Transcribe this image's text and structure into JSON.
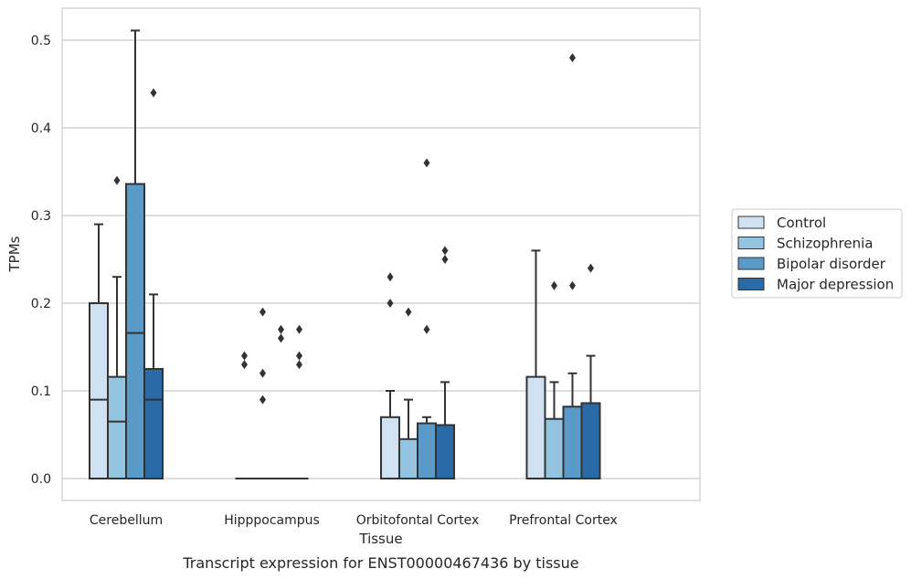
{
  "caption": "Transcript expression for ENST00000467436 by tissue",
  "chart_data": {
    "type": "box",
    "xlabel": "Tissue",
    "ylabel": "TPMs",
    "ylim": [
      -0.025,
      0.537
    ],
    "yticks": [
      "0.0",
      "0.1",
      "0.2",
      "0.3",
      "0.4",
      "0.5"
    ],
    "grid": "horizontal",
    "legend_position": "right",
    "categories": [
      "Cerebellum",
      "Hipppocampus",
      "Orbitofontal Cortex",
      "Prefrontal Cortex"
    ],
    "series": [
      {
        "name": "Control",
        "color": "#d0e1f2",
        "boxes": [
          {
            "q1": 0.0,
            "median": 0.09,
            "q3": 0.2,
            "whisker_low": 0.0,
            "whisker_high": 0.29,
            "outliers": []
          },
          {
            "q1": 0.0,
            "median": 0.0,
            "q3": 0.0,
            "whisker_low": 0.0,
            "whisker_high": 0.0,
            "outliers": [
              0.13,
              0.14
            ]
          },
          {
            "q1": 0.0,
            "median": 0.0,
            "q3": 0.07,
            "whisker_low": 0.0,
            "whisker_high": 0.1,
            "outliers": [
              0.2,
              0.23
            ]
          },
          {
            "q1": 0.0,
            "median": 0.0,
            "q3": 0.116,
            "whisker_low": 0.0,
            "whisker_high": 0.26,
            "outliers": []
          }
        ]
      },
      {
        "name": "Schizophrenia",
        "color": "#94c4df",
        "boxes": [
          {
            "q1": 0.0,
            "median": 0.065,
            "q3": 0.116,
            "whisker_low": 0.0,
            "whisker_high": 0.23,
            "outliers": [
              0.34
            ]
          },
          {
            "q1": 0.0,
            "median": 0.0,
            "q3": 0.0,
            "whisker_low": 0.0,
            "whisker_high": 0.0,
            "outliers": [
              0.09,
              0.12,
              0.19
            ]
          },
          {
            "q1": 0.0,
            "median": 0.0,
            "q3": 0.045,
            "whisker_low": 0.0,
            "whisker_high": 0.09,
            "outliers": [
              0.19
            ]
          },
          {
            "q1": 0.0,
            "median": 0.0,
            "q3": 0.068,
            "whisker_low": 0.0,
            "whisker_high": 0.11,
            "outliers": [
              0.22
            ]
          }
        ]
      },
      {
        "name": "Bipolar disorder",
        "color": "#5a9ac9",
        "boxes": [
          {
            "q1": 0.0,
            "median": 0.166,
            "q3": 0.336,
            "whisker_low": 0.0,
            "whisker_high": 0.511,
            "outliers": []
          },
          {
            "q1": 0.0,
            "median": 0.0,
            "q3": 0.0,
            "whisker_low": 0.0,
            "whisker_high": 0.0,
            "outliers": [
              0.16,
              0.17
            ]
          },
          {
            "q1": 0.0,
            "median": 0.0,
            "q3": 0.063,
            "whisker_low": 0.0,
            "whisker_high": 0.07,
            "outliers": [
              0.17,
              0.36
            ]
          },
          {
            "q1": 0.0,
            "median": 0.0,
            "q3": 0.082,
            "whisker_low": 0.0,
            "whisker_high": 0.12,
            "outliers": [
              0.22,
              0.48
            ]
          }
        ]
      },
      {
        "name": "Major depression",
        "color": "#2a6ba7",
        "boxes": [
          {
            "q1": 0.0,
            "median": 0.09,
            "q3": 0.125,
            "whisker_low": 0.0,
            "whisker_high": 0.21,
            "outliers": [
              0.44
            ]
          },
          {
            "q1": 0.0,
            "median": 0.0,
            "q3": 0.0,
            "whisker_low": 0.0,
            "whisker_high": 0.0,
            "outliers": [
              0.13,
              0.14,
              0.17
            ]
          },
          {
            "q1": 0.0,
            "median": 0.0,
            "q3": 0.061,
            "whisker_low": 0.0,
            "whisker_high": 0.11,
            "outliers": [
              0.25,
              0.26
            ]
          },
          {
            "q1": 0.0,
            "median": 0.0,
            "q3": 0.086,
            "whisker_low": 0.0,
            "whisker_high": 0.14,
            "outliers": [
              0.24
            ]
          }
        ]
      }
    ]
  }
}
